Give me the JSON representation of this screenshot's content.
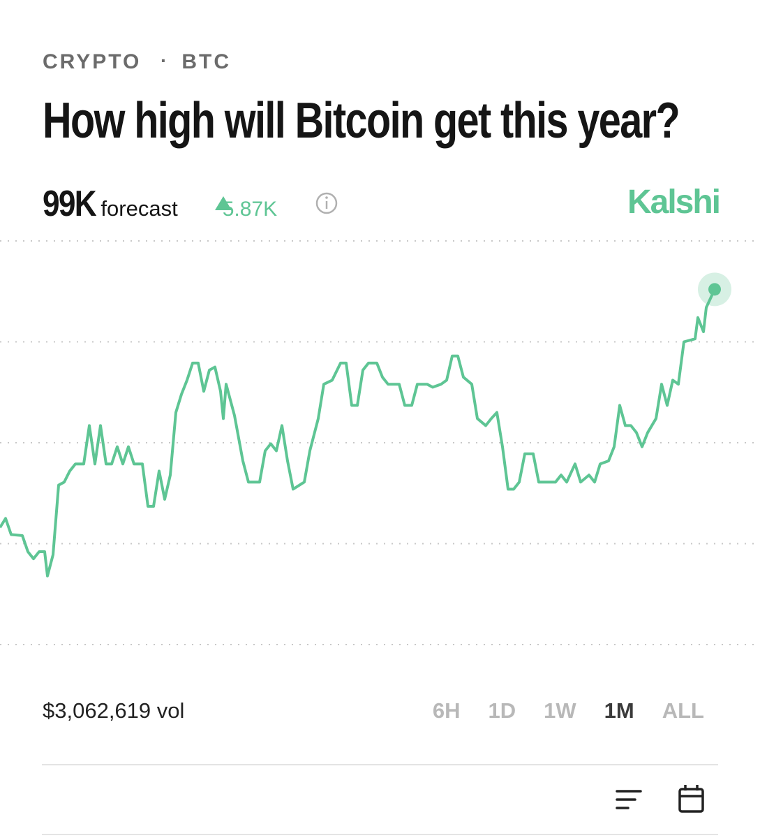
{
  "header": {
    "category": "CRYPTO",
    "subcategory": "BTC",
    "title": "How high will Bitcoin get this year?"
  },
  "forecast": {
    "value": "99K",
    "label": "forecast",
    "change": "5.87K",
    "brand": "Kalshi"
  },
  "chart_data": {
    "type": "line",
    "color": "#5ec594",
    "grid": true,
    "xlim": [
      0,
      1089
    ],
    "ylim": [
      0,
      4
    ],
    "yticks": [
      0,
      1,
      2,
      3,
      4
    ],
    "x": [
      0,
      8,
      16,
      32,
      40,
      48,
      56,
      64,
      68,
      76,
      84,
      92,
      100,
      108,
      120,
      128,
      136,
      144,
      152,
      160,
      168,
      176,
      184,
      192,
      204,
      212,
      220,
      228,
      236,
      244,
      252,
      260,
      268,
      276,
      284,
      292,
      300,
      308,
      316,
      320,
      324,
      336,
      348,
      356,
      372,
      380,
      388,
      396,
      404,
      412,
      420,
      436,
      444,
      456,
      464,
      476,
      488,
      496,
      504,
      512,
      520,
      528,
      540,
      548,
      556,
      572,
      580,
      590,
      598,
      612,
      620,
      632,
      640,
      648,
      656,
      664,
      676,
      684,
      696,
      704,
      712,
      720,
      728,
      736,
      744,
      752,
      764,
      772,
      796,
      804,
      812,
      824,
      832,
      844,
      852,
      860,
      872,
      880,
      888,
      896,
      904,
      912,
      920,
      928,
      940,
      948,
      956,
      964,
      972,
      980,
      996,
      1000,
      1008,
      1012,
      1024
    ],
    "values": [
      1.16,
      1.25,
      1.09,
      1.08,
      0.92,
      0.85,
      0.92,
      0.92,
      0.68,
      0.89,
      1.58,
      1.61,
      1.72,
      1.79,
      1.79,
      2.17,
      1.79,
      2.17,
      1.79,
      1.79,
      1.96,
      1.79,
      1.96,
      1.79,
      1.79,
      1.37,
      1.37,
      1.72,
      1.44,
      1.68,
      2.3,
      2.48,
      2.62,
      2.79,
      2.79,
      2.51,
      2.72,
      2.75,
      2.51,
      2.24,
      2.58,
      2.27,
      1.82,
      1.61,
      1.61,
      1.92,
      1.99,
      1.92,
      2.17,
      1.82,
      1.54,
      1.61,
      1.92,
      2.24,
      2.58,
      2.62,
      2.79,
      2.79,
      2.37,
      2.37,
      2.72,
      2.79,
      2.79,
      2.65,
      2.58,
      2.58,
      2.37,
      2.37,
      2.58,
      2.58,
      2.55,
      2.58,
      2.62,
      2.86,
      2.86,
      2.65,
      2.58,
      2.24,
      2.17,
      2.24,
      2.3,
      1.96,
      1.54,
      1.54,
      1.61,
      1.89,
      1.89,
      1.61,
      1.61,
      1.68,
      1.61,
      1.79,
      1.61,
      1.68,
      1.61,
      1.79,
      1.82,
      1.96,
      2.37,
      2.17,
      2.17,
      2.1,
      1.96,
      2.1,
      2.24,
      2.58,
      2.37,
      2.62,
      2.58,
      3.0,
      3.03,
      3.24,
      3.1,
      3.34,
      3.52
    ]
  },
  "footer": {
    "volume": "$3,062,619 vol",
    "ranges": [
      "6H",
      "1D",
      "1W",
      "1M",
      "ALL"
    ],
    "active_range": "1M"
  }
}
